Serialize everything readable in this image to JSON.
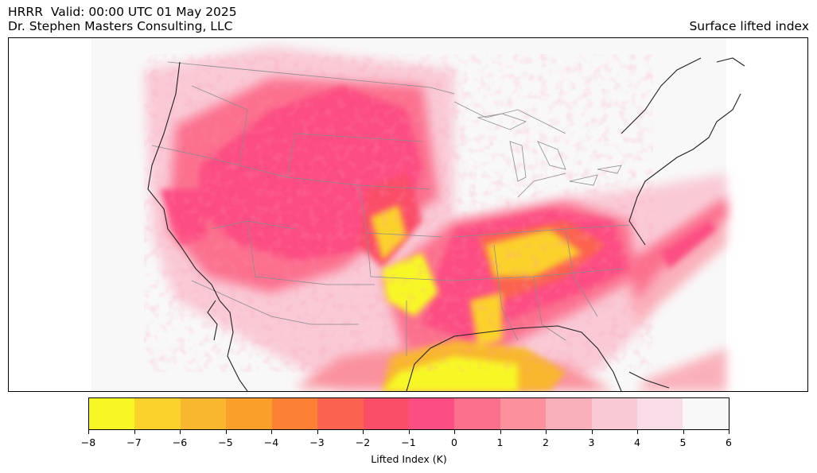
{
  "header": {
    "line1": "HRRR  Valid: 00:00 UTC 01 May 2025",
    "line2": "Dr. Stephen Masters Consulting, LLC",
    "field_name": "Surface lifted index"
  },
  "map": {
    "region": "Continental United States",
    "field": "Surface lifted index",
    "ocean_background": "#f9f9f9",
    "coastline_color": "#222222",
    "state_border_color": "#8c8c8c"
  },
  "colorbar": {
    "label": "Lifted Index (K)",
    "ticks": [
      "−8",
      "−7",
      "−6",
      "−5",
      "−4",
      "−3",
      "−2",
      "−1",
      "0",
      "1",
      "2",
      "3",
      "4",
      "5",
      "6"
    ],
    "colors": [
      "#f7f726",
      "#fbd22c",
      "#f8b72e",
      "#f99f2a",
      "#fc8135",
      "#fb6350",
      "#fa4d67",
      "#fc4e83",
      "#fb708d",
      "#fa919d",
      "#fab0ba",
      "#f9cad6",
      "#f8dce8",
      "#f8f8f8"
    ]
  }
}
